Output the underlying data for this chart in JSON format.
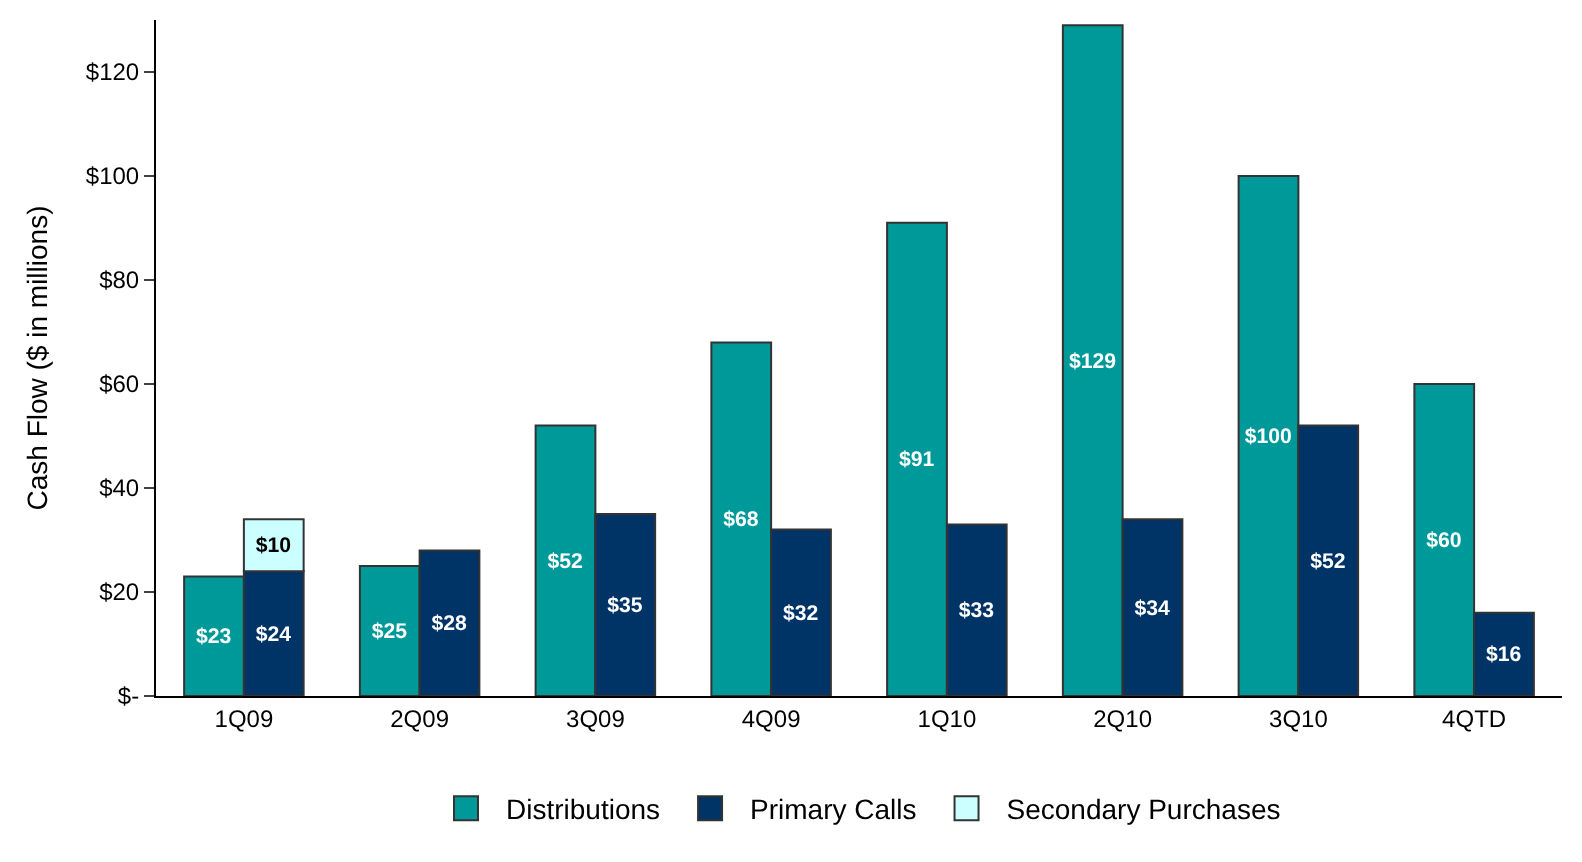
{
  "chart_data": {
    "type": "bar",
    "ylabel": "Cash Flow ($ in millions)",
    "categories": [
      "1Q09",
      "2Q09",
      "3Q09",
      "4Q09",
      "1Q10",
      "2Q10",
      "3Q10",
      "4QTD"
    ],
    "series": [
      {
        "name": "Distributions",
        "color": "#009999",
        "values": [
          23,
          25,
          52,
          68,
          91,
          129,
          100,
          60
        ],
        "value_labels": [
          "$23",
          "$25",
          "$52",
          "$68",
          "$91",
          "$129",
          "$100",
          "$60"
        ]
      },
      {
        "name": "Primary Calls",
        "color": "#003366",
        "values": [
          24,
          28,
          35,
          32,
          33,
          34,
          52,
          16
        ],
        "value_labels": [
          "$24",
          "$28",
          "$35",
          "$32",
          "$33",
          "$34",
          "$52",
          "$16"
        ]
      },
      {
        "name": "Secondary Purchases",
        "color": "#ccffff",
        "base": [
          24,
          null,
          null,
          null,
          null,
          null,
          null,
          null
        ],
        "values": [
          10,
          null,
          null,
          null,
          null,
          null,
          null,
          null
        ],
        "value_labels": [
          "$10",
          null,
          null,
          null,
          null,
          null,
          null,
          null
        ]
      }
    ],
    "ylim": [
      0,
      130
    ],
    "yticks": [
      {
        "value": 0,
        "label": "$-"
      },
      {
        "value": 20,
        "label": "$20"
      },
      {
        "value": 40,
        "label": "$40"
      },
      {
        "value": 60,
        "label": "$60"
      },
      {
        "value": 80,
        "label": "$80"
      },
      {
        "value": 100,
        "label": "$100"
      },
      {
        "value": 120,
        "label": "$120"
      }
    ],
    "legend": "bottom"
  }
}
